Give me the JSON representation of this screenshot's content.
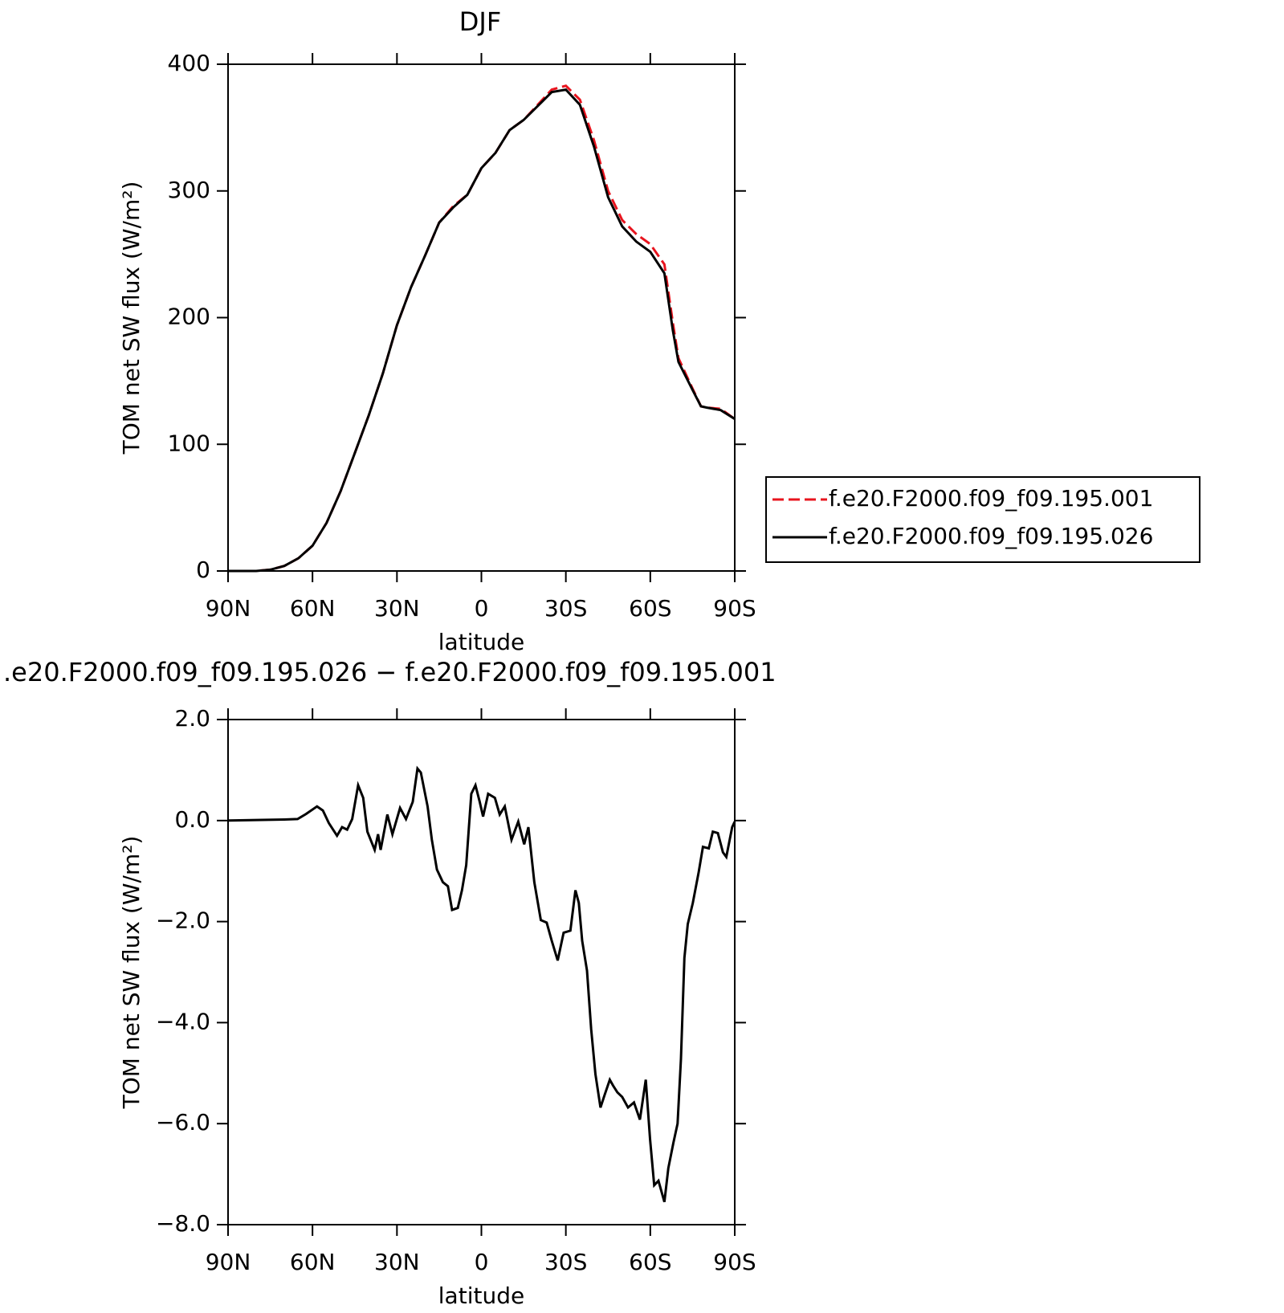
{
  "chart_data": [
    {
      "type": "line",
      "title": "DJF",
      "xlabel": "latitude",
      "ylabel": "TOM net SW flux (W/m²)",
      "xlim": [
        90,
        -90
      ],
      "xticks": [
        {
          "value": 90,
          "label": "90N"
        },
        {
          "value": 60,
          "label": "60N"
        },
        {
          "value": 30,
          "label": "30N"
        },
        0,
        {
          "value": -30,
          "label": "30S"
        },
        {
          "value": -60,
          "label": "60S"
        },
        {
          "value": -90,
          "label": "90S"
        }
      ],
      "ylim": [
        0,
        400
      ],
      "yticks": [
        0,
        100,
        200,
        300,
        400
      ],
      "legend": "right",
      "x": [
        90,
        85,
        80,
        75,
        70,
        65,
        60,
        55,
        50,
        45,
        40,
        35,
        30,
        25,
        20,
        15,
        10,
        5,
        0,
        -5,
        -10,
        -15,
        -20,
        -25,
        -30,
        -35,
        -40,
        -45,
        -50,
        -55,
        -60,
        -65,
        -68,
        -70,
        -75,
        -78,
        -80,
        -85,
        -90
      ],
      "series": [
        {
          "name": "f.e20.F2000.f09_f09.195.001",
          "color": "#e8141e",
          "line_style": "dashed",
          "values": [
            0,
            0,
            0,
            1,
            4,
            10,
            20,
            38,
            63,
            93,
            123,
            156,
            194,
            224,
            249,
            275,
            288,
            297,
            318,
            330,
            348,
            356,
            368,
            380,
            383,
            372,
            340,
            300,
            277,
            266,
            258,
            242,
            196,
            168,
            144,
            130,
            129,
            128,
            120
          ]
        },
        {
          "name": "f.e20.F2000.f09_f09.195.026",
          "color": "#000000",
          "line_style": "solid",
          "values": [
            0,
            0,
            0,
            1,
            4,
            10,
            20,
            38,
            63,
            93,
            123,
            156,
            194,
            224,
            249,
            275,
            287,
            297,
            318,
            330,
            348,
            356,
            367,
            378,
            380,
            368,
            335,
            295,
            272,
            260,
            252,
            235,
            190,
            165,
            143,
            130,
            129,
            127,
            120
          ]
        }
      ]
    },
    {
      "type": "line",
      "title": ".e20.F2000.f09_f09.195.026 − f.e20.F2000.f09_f09.195.001",
      "xlabel": "latitude",
      "ylabel": "TOM net SW flux (W/m²)",
      "xlim": [
        90,
        -90
      ],
      "xticks": [
        {
          "value": 90,
          "label": "90N"
        },
        {
          "value": 60,
          "label": "60N"
        },
        {
          "value": 30,
          "label": "30N"
        },
        0,
        {
          "value": -30,
          "label": "30S"
        },
        {
          "value": -60,
          "label": "60S"
        },
        {
          "value": -90,
          "label": "90S"
        }
      ],
      "ylim": [
        -8,
        2
      ],
      "yticks": [
        {
          "value": -8,
          "label": "−8.0"
        },
        {
          "value": -6,
          "label": "−6.0"
        },
        {
          "value": -4,
          "label": "−4.0"
        },
        {
          "value": -2,
          "label": "−2.0"
        },
        {
          "value": 0,
          "label": "0.0"
        },
        {
          "value": 2,
          "label": "2.0"
        }
      ],
      "x": [
        90,
        70,
        65.3,
        62.3,
        58.4,
        56.3,
        54.2,
        51.3,
        49.5,
        47.7,
        45.9,
        43.8,
        42,
        40.5,
        37.9,
        36.7,
        35.8,
        33.4,
        31.6,
        28.9,
        26.8,
        24.4,
        22.7,
        21.5,
        19.1,
        17.6,
        15.8,
        13.7,
        11.9,
        10.4,
        8.4,
        6.9,
        5.4,
        3.6,
        2.1,
        0.6,
        -0.6,
        -2.4,
        -4.8,
        -6.5,
        -8.3,
        -10.7,
        -13.1,
        -15.2,
        -16.7,
        -18.8,
        -21.1,
        -23.2,
        -25,
        -27.1,
        -29.2,
        -31.6,
        -33.4,
        -34.6,
        -35.8,
        -37.5,
        -39,
        -40.5,
        -42.3,
        -43.8,
        -45.6,
        -46.8,
        -48.3,
        -50,
        -52.1,
        -54.2,
        -56.3,
        -58.4,
        -59.9,
        -61.4,
        -62.9,
        -65,
        -66.4,
        -68.2,
        -69.7,
        -70.9,
        -72.1,
        -73.3,
        -75.1,
        -77.2,
        -78.7,
        -80.8,
        -82.2,
        -84,
        -85.8,
        -87,
        -89.1,
        -90
      ],
      "series": [
        {
          "color": "#000000",
          "line_style": "solid",
          "values": [
            0,
            0.02,
            0.03,
            0.13,
            0.28,
            0.2,
            -0.05,
            -0.3,
            -0.13,
            -0.18,
            0.03,
            0.7,
            0.45,
            -0.22,
            -0.58,
            -0.27,
            -0.58,
            0.12,
            -0.27,
            0.25,
            0.03,
            0.37,
            1.03,
            0.95,
            0.28,
            -0.38,
            -0.97,
            -1.22,
            -1.3,
            -1.77,
            -1.73,
            -1.38,
            -0.88,
            0.53,
            0.7,
            0.37,
            0.08,
            0.53,
            0.45,
            0.12,
            0.28,
            -0.38,
            -0.02,
            -0.47,
            -0.13,
            -1.22,
            -1.97,
            -2.02,
            -2.38,
            -2.77,
            -2.22,
            -2.18,
            -1.38,
            -1.63,
            -2.38,
            -2.97,
            -4.13,
            -5.02,
            -5.68,
            -5.43,
            -5.13,
            -5.25,
            -5.38,
            -5.47,
            -5.68,
            -5.58,
            -5.92,
            -5.13,
            -6.3,
            -7.22,
            -7.13,
            -7.55,
            -6.88,
            -6.38,
            -6,
            -4.72,
            -2.72,
            -2.05,
            -1.63,
            -1.02,
            -0.52,
            -0.55,
            -0.22,
            -0.25,
            -0.63,
            -0.72,
            -0.13,
            -0.02
          ]
        }
      ]
    }
  ]
}
